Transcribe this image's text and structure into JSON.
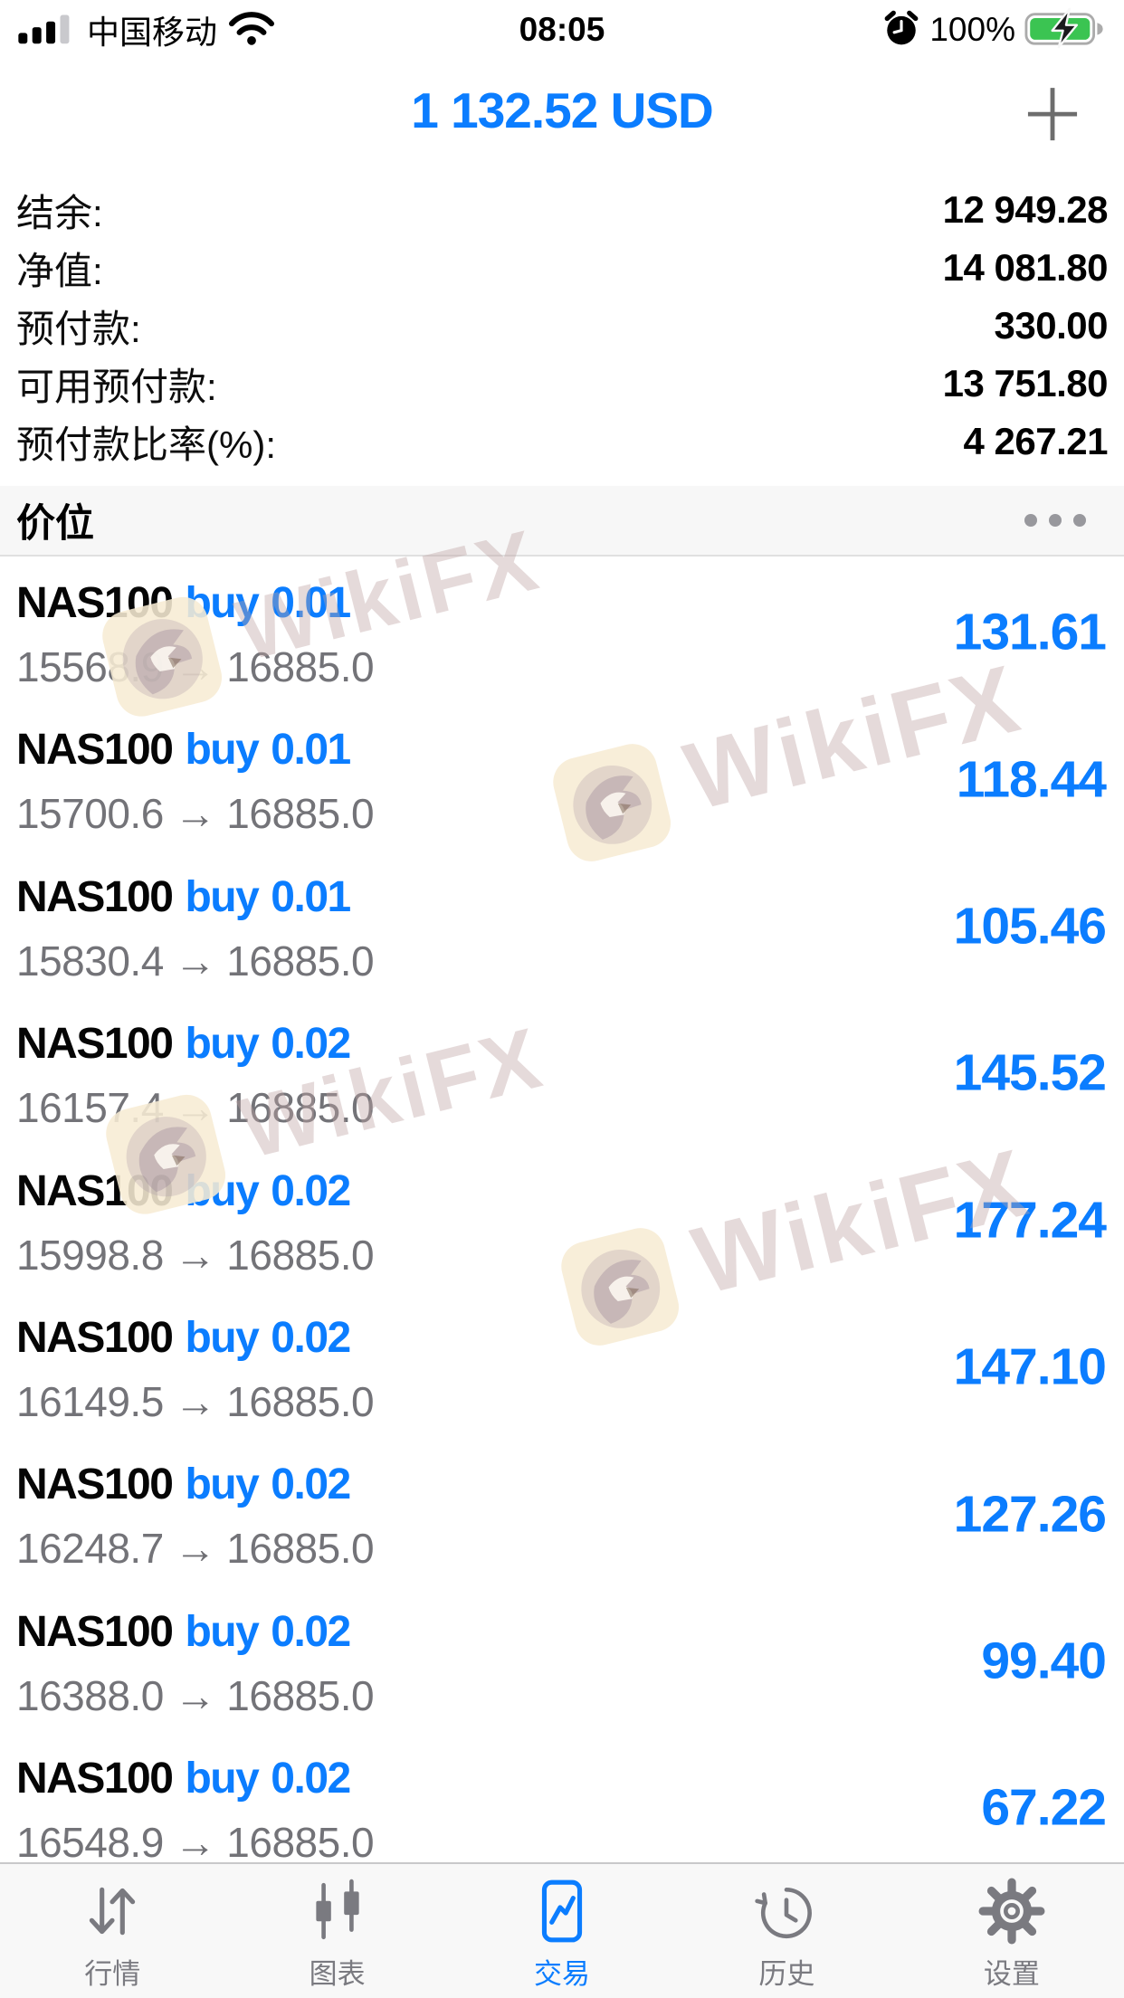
{
  "status_bar": {
    "carrier": "中国移动",
    "time": "08:05",
    "battery_percent": "100%",
    "battery_color": "#3bc452"
  },
  "header": {
    "balance": "1 132.52 USD",
    "accent_color": "#0b7dff"
  },
  "account_summary": {
    "rows": [
      {
        "label": "结余:",
        "value": "12 949.28"
      },
      {
        "label": "净值:",
        "value": "14 081.80"
      },
      {
        "label": "预付款:",
        "value": "330.00"
      },
      {
        "label": "可用预付款:",
        "value": "13 751.80"
      },
      {
        "label": "预付款比率(%):",
        "value": "4 267.21"
      }
    ]
  },
  "positions_section": {
    "title": "价位"
  },
  "arrow": "→",
  "trades": [
    {
      "symbol": "NAS100",
      "side": "buy",
      "volume": "0.01",
      "open": "15568.9",
      "current": "16885.0",
      "profit": "131.61"
    },
    {
      "symbol": "NAS100",
      "side": "buy",
      "volume": "0.01",
      "open": "15700.6",
      "current": "16885.0",
      "profit": "118.44"
    },
    {
      "symbol": "NAS100",
      "side": "buy",
      "volume": "0.01",
      "open": "15830.4",
      "current": "16885.0",
      "profit": "105.46"
    },
    {
      "symbol": "NAS100",
      "side": "buy",
      "volume": "0.02",
      "open": "16157.4",
      "current": "16885.0",
      "profit": "145.52"
    },
    {
      "symbol": "NAS100",
      "side": "buy",
      "volume": "0.02",
      "open": "15998.8",
      "current": "16885.0",
      "profit": "177.24"
    },
    {
      "symbol": "NAS100",
      "side": "buy",
      "volume": "0.02",
      "open": "16149.5",
      "current": "16885.0",
      "profit": "147.10"
    },
    {
      "symbol": "NAS100",
      "side": "buy",
      "volume": "0.02",
      "open": "16248.7",
      "current": "16885.0",
      "profit": "127.26"
    },
    {
      "symbol": "NAS100",
      "side": "buy",
      "volume": "0.02",
      "open": "16388.0",
      "current": "16885.0",
      "profit": "99.40"
    },
    {
      "symbol": "NAS100",
      "side": "buy",
      "volume": "0.02",
      "open": "16548.9",
      "current": "16885.0",
      "profit": "67.22"
    }
  ],
  "tab_bar": {
    "tabs": [
      {
        "label": "行情",
        "icon": "quotes-icon",
        "active": false
      },
      {
        "label": "图表",
        "icon": "charts-icon",
        "active": false
      },
      {
        "label": "交易",
        "icon": "trade-icon",
        "active": true
      },
      {
        "label": "历史",
        "icon": "history-icon",
        "active": false
      },
      {
        "label": "设置",
        "icon": "settings-icon",
        "active": false
      }
    ]
  },
  "watermark": {
    "text": "WikiFX"
  }
}
